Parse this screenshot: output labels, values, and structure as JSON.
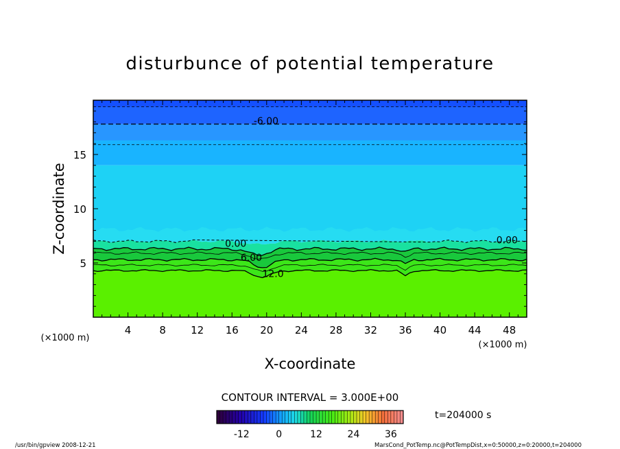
{
  "chart_data": {
    "type": "contour",
    "title": "disturbunce of potential temperature",
    "xlabel": "X-coordinate",
    "ylabel": "Z-coordinate",
    "x_unit_left": "(×1000 m)",
    "x_unit_right": "(×1000 m)",
    "xlim": [
      0,
      50
    ],
    "ylim": [
      0,
      20
    ],
    "x_ticks": [
      4,
      8,
      12,
      16,
      20,
      24,
      28,
      32,
      36,
      40,
      44,
      48
    ],
    "y_ticks": [
      5,
      10,
      15
    ],
    "contour_interval_text": "CONTOUR INTERVAL = 3.000E+00",
    "time_text": "t=204000 s",
    "contour_labels": [
      {
        "text": "-6.00",
        "x": 18.5,
        "z": 17.8
      },
      {
        "text": "0.00",
        "x": 15.2,
        "z": 6.5
      },
      {
        "text": "0.00",
        "x": 46.5,
        "z": 6.8
      },
      {
        "text": "6.00",
        "x": 17.0,
        "z": 5.2
      },
      {
        "text": "12.0",
        "x": 19.5,
        "z": 3.7
      }
    ],
    "contour_levels": [
      {
        "value": -12,
        "z": 19.4
      },
      {
        "value": -9,
        "z": 17.8
      },
      {
        "value": -6,
        "z": 15.9
      }
    ],
    "colorbar": {
      "min": -20,
      "max": 40,
      "ticks": [
        -12,
        0,
        12,
        24,
        36
      ]
    },
    "colors": {
      "deep_blue": "#1e64ff",
      "blue": "#2896ff",
      "sky": "#19b4ff",
      "cyan": "#1ed2f5",
      "green_dark": "#19c83c",
      "green": "#3ce619",
      "lime": "#5af000"
    }
  },
  "footer": {
    "left": "/usr/bin/gpview   2008-12-21",
    "right": "MarsCond_PotTemp.nc@PotTempDist,x=0:50000,z=0:20000,t=204000"
  }
}
